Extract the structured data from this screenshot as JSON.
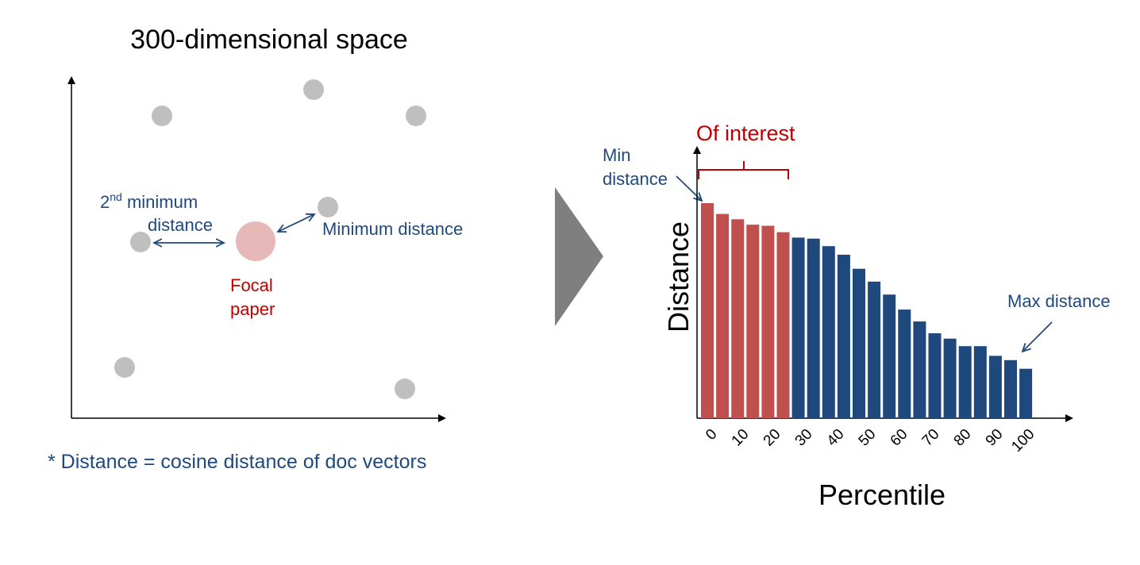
{
  "left_panel": {
    "title": "300-dimensional space",
    "second_min_label": {
      "sup": "nd",
      "line1_prefix": "2",
      "line1_rest": " minimum",
      "line2": "distance"
    },
    "min_label": "Minimum distance",
    "focal_label": {
      "line1": "Focal",
      "line2": "paper"
    },
    "footnote": "* Distance = cosine distance of doc vectors"
  },
  "right_panel": {
    "of_interest": "Of interest",
    "min_annot": {
      "line1": "Min",
      "line2": "distance"
    },
    "max_annot": "Max distance",
    "ylabel": "Distance",
    "xlabel": "Percentile"
  },
  "colors": {
    "highlight_bar": "#c0504d",
    "normal_bar": "#1f497d",
    "annotation_blue": "#1f497d",
    "annotation_red": "#c00000",
    "neutral_dot": "#bfbfbf",
    "focal_dot": "#e6b9b8",
    "arrow_gray": "#7f7f7f"
  },
  "chart_data": {
    "type": "bar",
    "xlabel": "Percentile",
    "ylabel": "Distance",
    "x_tick_labels": [
      "0",
      "10",
      "20",
      "30",
      "40",
      "50",
      "60",
      "70",
      "80",
      "90",
      "100"
    ],
    "highlighted_range": "0-20",
    "values": [
      1.0,
      0.95,
      0.925,
      0.9,
      0.895,
      0.865,
      0.84,
      0.835,
      0.8,
      0.76,
      0.695,
      0.635,
      0.575,
      0.505,
      0.45,
      0.395,
      0.37,
      0.335,
      0.335,
      0.29,
      0.27,
      0.23
    ],
    "highlight_count": 6
  }
}
